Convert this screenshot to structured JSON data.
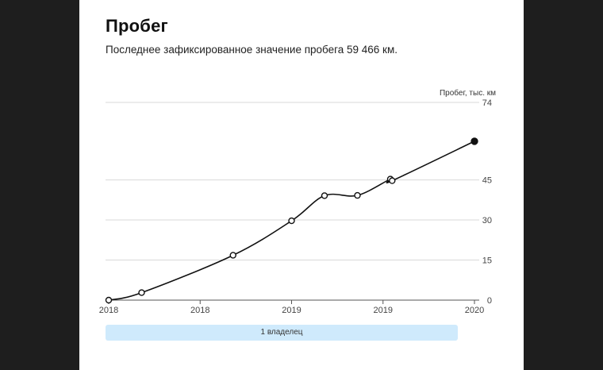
{
  "header": {
    "title": "Пробег",
    "subtitle": "Последнее зафиксированное значение пробега 59 466 км."
  },
  "owners": {
    "label": "1 владелец"
  },
  "colors": {
    "line": "#111111",
    "grid": "#d9d9d9",
    "owner_bar": "#cfeafc",
    "background_side": "#1e1e1e"
  },
  "chart_data": {
    "type": "line",
    "title": "Пробег",
    "ylabel": "Пробег, тыс. км",
    "ylim": [
      0,
      74
    ],
    "yticks": [
      0,
      15,
      30,
      45,
      74
    ],
    "xlim": [
      0,
      1
    ],
    "xticks": [
      {
        "x": 0.0,
        "label": "2018"
      },
      {
        "x": 0.25,
        "label": "2018"
      },
      {
        "x": 0.5,
        "label": "2019"
      },
      {
        "x": 0.75,
        "label": "2019"
      },
      {
        "x": 1.0,
        "label": "2020"
      }
    ],
    "grid": true,
    "series": [
      {
        "points": [
          {
            "x": 0.0,
            "y": 0,
            "marker": "open"
          },
          {
            "x": 0.09,
            "y": 2.8,
            "marker": "open"
          },
          {
            "x": 0.34,
            "y": 16.8,
            "marker": "open"
          },
          {
            "x": 0.5,
            "y": 29.7,
            "marker": "open"
          },
          {
            "x": 0.59,
            "y": 39.1,
            "marker": "open"
          },
          {
            "x": 0.68,
            "y": 39.2,
            "marker": "open"
          },
          {
            "x": 0.77,
            "y": 45.3,
            "marker": "open"
          },
          {
            "x": 0.775,
            "y": 44.7,
            "marker": "open"
          },
          {
            "x": 1.0,
            "y": 59.466,
            "marker": "filled"
          }
        ]
      }
    ]
  }
}
